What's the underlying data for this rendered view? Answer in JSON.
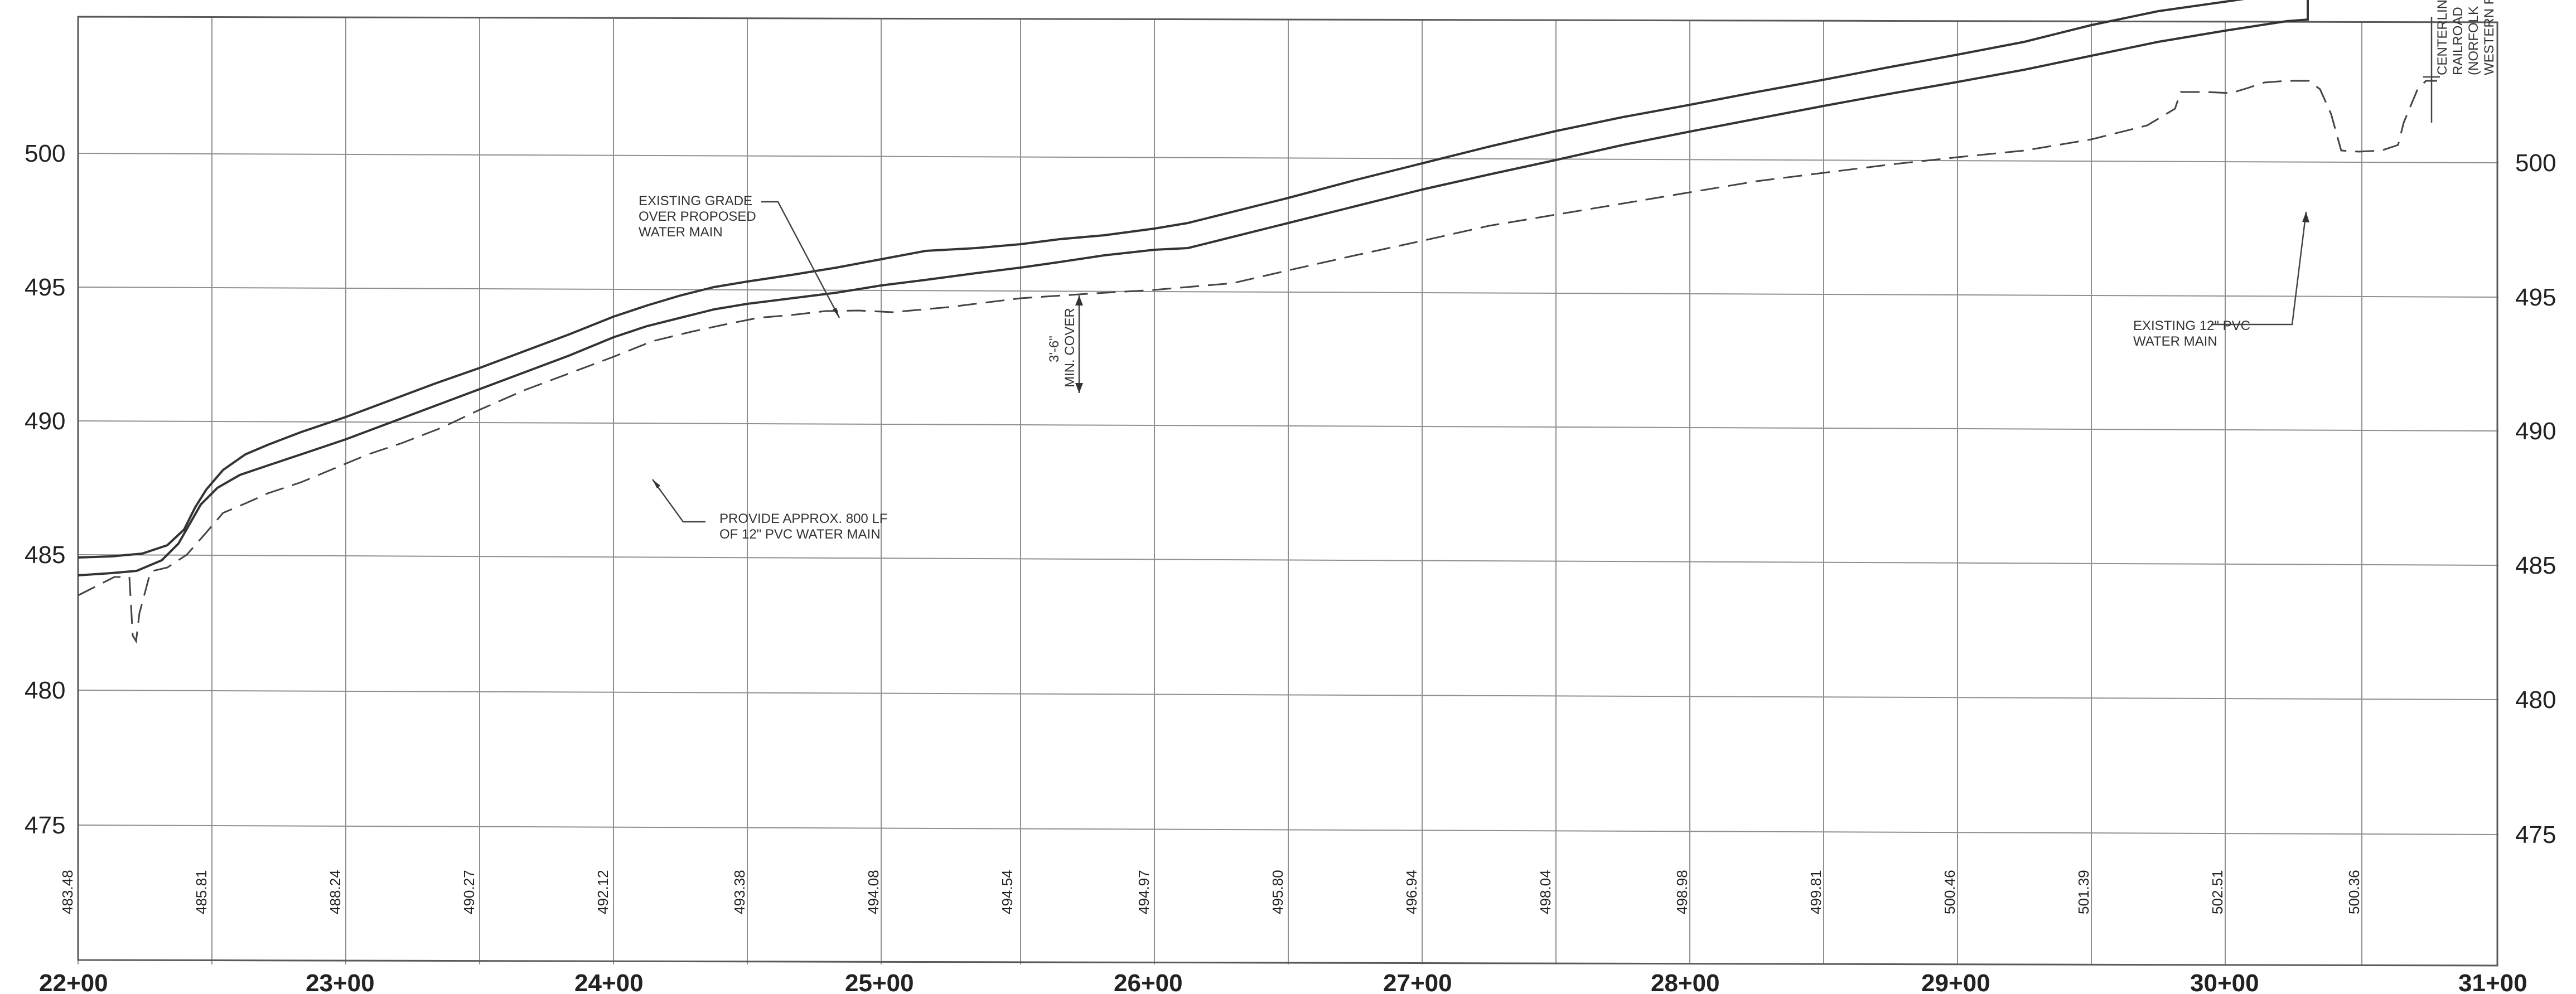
{
  "profile": {
    "elevation_labels": [
      "500",
      "495",
      "490",
      "485",
      "480",
      "475"
    ],
    "station_labels": [
      "22+00",
      "23+00",
      "24+00",
      "25+00",
      "26+00",
      "27+00",
      "28+00",
      "29+00",
      "30+00",
      "31+00"
    ],
    "grade_values": [
      "483.48",
      "485.81",
      "488.24",
      "490.27",
      "492.12",
      "493.38",
      "494.08",
      "494.54",
      "494.97",
      "495.80",
      "496.94",
      "498.04",
      "498.98",
      "499.81",
      "500.46",
      "501.39",
      "502.51",
      "500.36"
    ],
    "notes": {
      "existing_grade": [
        "EXISTING GRADE",
        "OVER PROPOSED",
        "WATER MAIN"
      ],
      "cover": [
        "3'-6\"",
        "MIN. COVER"
      ],
      "provide": [
        "PROVIDE APPROX. 800 LF",
        "OF 12\" PVC WATER MAIN"
      ],
      "existing_pvc": [
        "EXISTING 12\" PVC",
        "WATER MAIN"
      ],
      "railroad": [
        "CENTERLINE",
        "RAILROAD",
        "(NORFOLK",
        "WESTERN R"
      ]
    }
  }
}
